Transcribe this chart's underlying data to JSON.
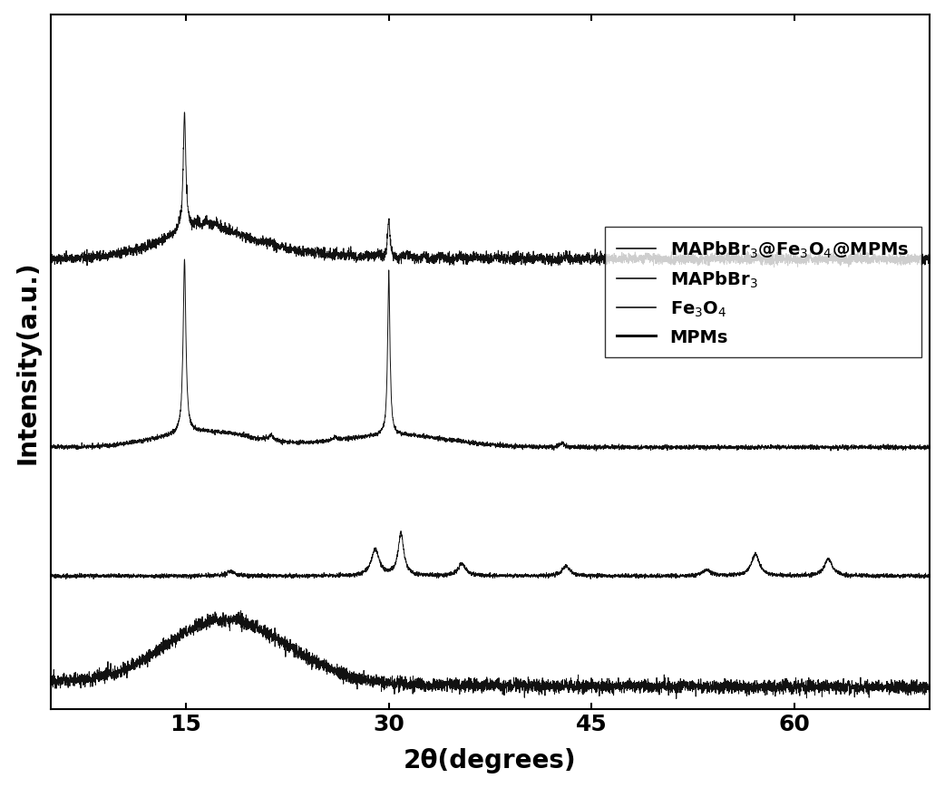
{
  "xlabel": "2θ(degrees)",
  "ylabel": "Intensity(a.u.)",
  "xlim": [
    5,
    70
  ],
  "xticks": [
    15,
    30,
    45,
    60
  ],
  "background_color": "#ffffff",
  "line_color": "#111111",
  "legend_labels": [
    "MAPbBr$_3$@Fe$_3$O$_4$@MPMs",
    "MAPbBr$_3$",
    "Fe$_3$O$_4$",
    "MPMs"
  ],
  "figsize": [
    10.42,
    8.7
  ],
  "dpi": 100
}
